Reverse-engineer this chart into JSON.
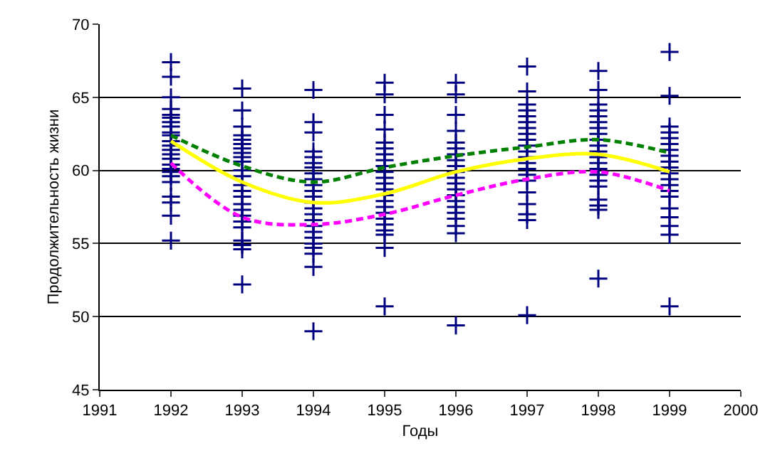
{
  "chart_data": {
    "type": "scatter",
    "xlabel": "Годы",
    "ylabel": "Продолжительность жизни",
    "xlim": [
      1991,
      2000
    ],
    "xticks": [
      1991,
      1992,
      1993,
      1994,
      1995,
      1996,
      1997,
      1998,
      1999,
      2000
    ],
    "ylim": [
      45,
      70
    ],
    "yticks": [
      45,
      50,
      55,
      60,
      65,
      70
    ],
    "grid": "y",
    "series": [
      {
        "marker": "cross",
        "color": "#000080",
        "x": [
          1992,
          1992,
          1992,
          1992,
          1992,
          1992,
          1992,
          1992,
          1992,
          1992,
          1992,
          1992,
          1992,
          1992,
          1992,
          1992,
          1992,
          1992,
          1992,
          1992,
          1992,
          1992,
          1992,
          1992,
          1993,
          1993,
          1993,
          1993,
          1993,
          1993,
          1993,
          1993,
          1993,
          1993,
          1993,
          1993,
          1993,
          1993,
          1993,
          1993,
          1993,
          1993,
          1993,
          1993,
          1993,
          1993,
          1993,
          1993,
          1994,
          1994,
          1994,
          1994,
          1994,
          1994,
          1994,
          1994,
          1994,
          1994,
          1994,
          1994,
          1994,
          1994,
          1994,
          1994,
          1994,
          1994,
          1994,
          1994,
          1994,
          1994,
          1994,
          1994,
          1995,
          1995,
          1995,
          1995,
          1995,
          1995,
          1995,
          1995,
          1995,
          1995,
          1995,
          1995,
          1995,
          1995,
          1995,
          1995,
          1995,
          1995,
          1995,
          1995,
          1995,
          1995,
          1995,
          1996,
          1996,
          1996,
          1996,
          1996,
          1996,
          1996,
          1996,
          1996,
          1996,
          1996,
          1996,
          1996,
          1996,
          1996,
          1996,
          1996,
          1996,
          1996,
          1996,
          1996,
          1997,
          1997,
          1997,
          1997,
          1997,
          1997,
          1997,
          1997,
          1997,
          1997,
          1997,
          1997,
          1997,
          1997,
          1997,
          1997,
          1997,
          1997,
          1997,
          1997,
          1997,
          1998,
          1998,
          1998,
          1998,
          1998,
          1998,
          1998,
          1998,
          1998,
          1998,
          1998,
          1998,
          1998,
          1998,
          1998,
          1998,
          1998,
          1998,
          1998,
          1998,
          1998,
          1999,
          1999,
          1999,
          1999,
          1999,
          1999,
          1999,
          1999,
          1999,
          1999,
          1999,
          1999,
          1999,
          1999,
          1999,
          1999,
          1999,
          1999,
          1999,
          1999
        ],
        "values": [
          67.4,
          66.4,
          65.0,
          64.2,
          63.8,
          63.6,
          63.3,
          63.0,
          62.6,
          62.4,
          62.0,
          61.7,
          61.4,
          61.1,
          60.8,
          60.4,
          60.1,
          59.9,
          59.6,
          59.2,
          58.2,
          57.8,
          56.9,
          55.2,
          65.6,
          64.1,
          63.0,
          62.4,
          62.1,
          61.8,
          61.5,
          61.2,
          60.9,
          60.6,
          60.0,
          59.6,
          59.0,
          58.6,
          58.2,
          57.7,
          57.3,
          56.9,
          56.5,
          56.1,
          55.2,
          54.9,
          54.6,
          52.2,
          65.5,
          63.3,
          62.6,
          61.3,
          60.9,
          60.5,
          60.2,
          59.8,
          59.4,
          59.0,
          58.6,
          58.2,
          57.8,
          57.4,
          57.0,
          56.6,
          56.2,
          55.8,
          55.4,
          55.0,
          54.7,
          54.3,
          53.4,
          49.0,
          66.0,
          65.2,
          63.8,
          62.8,
          61.9,
          61.5,
          61.1,
          60.7,
          60.3,
          59.9,
          59.5,
          59.1,
          58.7,
          58.3,
          57.9,
          57.5,
          57.1,
          56.7,
          56.3,
          55.9,
          55.6,
          54.7,
          50.7,
          66.0,
          65.2,
          63.8,
          62.7,
          61.9,
          61.5,
          61.1,
          60.7,
          60.3,
          59.9,
          59.5,
          59.1,
          58.7,
          58.3,
          57.9,
          57.5,
          57.1,
          56.7,
          56.2,
          55.7,
          49.4,
          67.1,
          65.4,
          64.5,
          64.1,
          63.7,
          63.3,
          62.9,
          62.5,
          62.1,
          61.7,
          61.3,
          60.9,
          60.5,
          60.1,
          59.7,
          59.3,
          58.5,
          57.7,
          57.0,
          56.6,
          50.1,
          66.8,
          65.5,
          64.5,
          64.1,
          63.7,
          63.3,
          62.9,
          62.5,
          62.1,
          61.7,
          61.3,
          60.9,
          60.5,
          60.1,
          59.7,
          59.3,
          58.9,
          58.0,
          57.6,
          57.3,
          52.6,
          68.1,
          65.1,
          63.0,
          62.6,
          62.2,
          61.8,
          61.4,
          61.0,
          60.6,
          60.2,
          59.8,
          59.4,
          59.0,
          58.6,
          58.2,
          57.4,
          56.8,
          56.2,
          55.6,
          50.7
        ]
      },
      {
        "type": "line",
        "marker": "none",
        "color": "#ffff00",
        "line_style": "solid",
        "x": [
          1992,
          1993,
          1994,
          1995,
          1996,
          1997,
          1998,
          1999
        ],
        "values": [
          62.0,
          59.2,
          57.8,
          58.4,
          59.9,
          60.8,
          61.1,
          59.9
        ]
      },
      {
        "type": "line",
        "marker": "none",
        "color": "#008000",
        "line_style": "dashed",
        "x": [
          1992,
          1993,
          1994,
          1995,
          1996,
          1997,
          1998,
          1999
        ],
        "values": [
          62.4,
          60.3,
          59.2,
          60.2,
          61.0,
          61.6,
          62.1,
          61.2
        ]
      },
      {
        "type": "line",
        "marker": "none",
        "color": "#ff00ff",
        "line_style": "dashed",
        "x": [
          1992,
          1993,
          1994,
          1995,
          1996,
          1997,
          1998,
          1999
        ],
        "values": [
          60.5,
          56.8,
          56.3,
          57.0,
          58.3,
          59.4,
          59.9,
          58.6
        ]
      }
    ]
  }
}
